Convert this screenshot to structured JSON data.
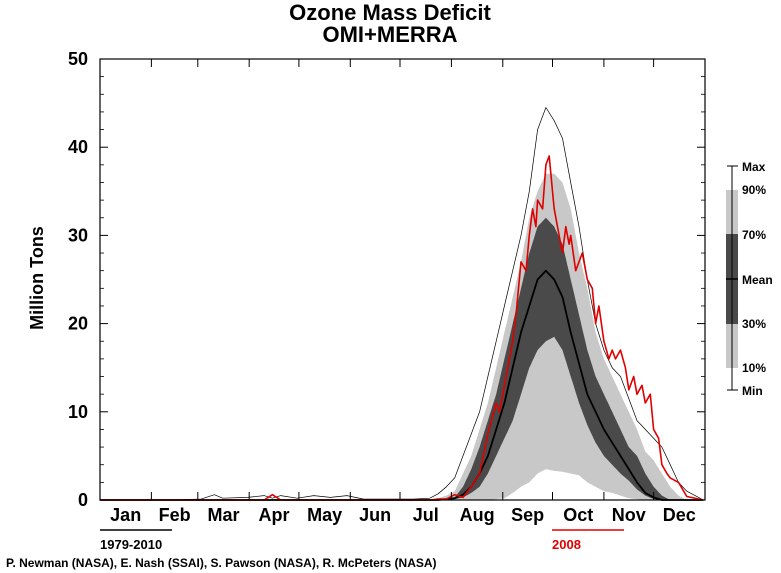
{
  "chart_data": {
    "type": "line",
    "title": "Ozone Mass Deficit",
    "subtitle": "OMI+MERRA",
    "ylabel": "Million Tons",
    "xlabel": "",
    "ylim": [
      0,
      50
    ],
    "yticks": [
      0,
      10,
      20,
      30,
      40,
      50
    ],
    "months": [
      "Jan",
      "Feb",
      "Mar",
      "Apr",
      "May",
      "Jun",
      "Jul",
      "Aug",
      "Sep",
      "Oct",
      "Nov",
      "Dec"
    ],
    "x_unit": "day of year",
    "climatology_period": "1979-2010",
    "highlight_year": "2008",
    "legend_labels": [
      "Max",
      "90%",
      "70%",
      "Mean",
      "30%",
      "10%",
      "Min"
    ],
    "colors": {
      "highlight": "#e00000",
      "mean": "#000000",
      "band_10_90": "#c8c8c8",
      "band_30_70": "#4a4a4a",
      "max_min": "#000000",
      "floor": "#7b2fd0"
    },
    "series": [
      {
        "name": "Max",
        "x": [
          1,
          40,
          62,
          70,
          75,
          90,
          100,
          105,
          110,
          120,
          130,
          140,
          150,
          160,
          170,
          180,
          190,
          200,
          205,
          210,
          215,
          220,
          225,
          230,
          235,
          240,
          245,
          250,
          255,
          260,
          265,
          270,
          275,
          280,
          285,
          290,
          295,
          300,
          305,
          310,
          315,
          320,
          325,
          330,
          335,
          340,
          345,
          350,
          355,
          360,
          365
        ],
        "values": [
          0,
          0,
          0.1,
          0.6,
          0.2,
          0.3,
          0.5,
          0.2,
          0.5,
          0.2,
          0.5,
          0.3,
          0.5,
          0.1,
          0.1,
          0.1,
          0.1,
          0.2,
          0.7,
          1.5,
          2.5,
          5,
          7.5,
          10,
          14,
          18,
          22,
          26,
          30,
          35,
          42,
          44.5,
          43,
          41,
          36,
          31,
          25,
          20,
          17,
          15,
          14,
          11.5,
          9,
          8,
          7,
          6,
          4,
          2,
          1,
          0.5,
          0
        ]
      },
      {
        "name": "90%",
        "x": [
          1,
          200,
          205,
          210,
          215,
          220,
          225,
          230,
          235,
          240,
          245,
          250,
          255,
          260,
          265,
          270,
          275,
          280,
          285,
          290,
          295,
          300,
          305,
          310,
          315,
          320,
          325,
          330,
          335,
          340,
          345,
          350,
          355,
          365
        ],
        "values": [
          0,
          0,
          0.2,
          0.5,
          1,
          3,
          5,
          8,
          11,
          15,
          19,
          23,
          27,
          32,
          35,
          37,
          37,
          36,
          33,
          28,
          24,
          19,
          16,
          14,
          12,
          10,
          8,
          5.5,
          4.5,
          3,
          1.5,
          0.5,
          0,
          0
        ]
      },
      {
        "name": "70%",
        "x": [
          1,
          205,
          210,
          215,
          220,
          225,
          230,
          235,
          240,
          245,
          250,
          255,
          260,
          265,
          270,
          275,
          280,
          285,
          290,
          295,
          300,
          305,
          310,
          315,
          320,
          325,
          330,
          335,
          340,
          345,
          365
        ],
        "values": [
          0,
          0,
          0.1,
          0.3,
          1.5,
          3.5,
          6,
          9,
          12,
          16,
          20,
          24,
          28,
          31,
          32,
          31,
          29,
          25,
          21,
          17,
          14,
          12,
          10,
          8,
          6,
          5,
          3,
          1.5,
          0.5,
          0,
          0
        ]
      },
      {
        "name": "Mean",
        "x": [
          1,
          205,
          210,
          215,
          220,
          225,
          230,
          235,
          240,
          245,
          250,
          255,
          260,
          265,
          270,
          275,
          280,
          285,
          290,
          295,
          300,
          305,
          310,
          315,
          320,
          325,
          330,
          335,
          340,
          345,
          350,
          365
        ],
        "values": [
          0,
          0,
          0.1,
          0.2,
          0.6,
          1.5,
          3,
          5,
          8,
          11,
          15,
          19,
          22,
          25,
          26,
          25,
          23,
          19,
          15.5,
          12,
          10,
          8,
          6.5,
          5,
          3.5,
          2,
          0.8,
          0.3,
          0,
          0,
          0,
          0
        ]
      },
      {
        "name": "30%",
        "x": [
          1,
          210,
          215,
          220,
          225,
          230,
          235,
          240,
          245,
          250,
          255,
          260,
          265,
          270,
          275,
          280,
          285,
          290,
          295,
          300,
          305,
          310,
          315,
          320,
          325,
          330,
          335,
          340,
          365
        ],
        "values": [
          0,
          0,
          0.1,
          0.3,
          0.8,
          1.5,
          3,
          5,
          7,
          9,
          12,
          15,
          17,
          18,
          18.5,
          17,
          14,
          11,
          8.5,
          6.5,
          5,
          4,
          3,
          2.2,
          1.2,
          0.5,
          0.1,
          0,
          0
        ]
      },
      {
        "name": "10%",
        "x": [
          1,
          225,
          235,
          245,
          250,
          255,
          260,
          265,
          270,
          275,
          280,
          285,
          290,
          295,
          300,
          305,
          310,
          315,
          320,
          330,
          365
        ],
        "values": [
          0,
          0,
          0,
          0.2,
          0.8,
          1.5,
          2,
          3,
          3.5,
          3.3,
          3.2,
          3,
          2.8,
          2,
          1.5,
          1,
          0.8,
          0.5,
          0.2,
          0,
          0
        ]
      },
      {
        "name": "Min",
        "x": [
          1,
          365
        ],
        "values": [
          0,
          0
        ]
      },
      {
        "name": "2008",
        "x": [
          1,
          60,
          100,
          105,
          110,
          200,
          205,
          210,
          215,
          220,
          225,
          230,
          235,
          240,
          242,
          245,
          250,
          252,
          255,
          258,
          260,
          262,
          264,
          265,
          268,
          270,
          272,
          274,
          275,
          278,
          280,
          282,
          284,
          285,
          288,
          290,
          292,
          295,
          298,
          300,
          302,
          305,
          308,
          310,
          312,
          315,
          318,
          320,
          323,
          325,
          328,
          330,
          333,
          335,
          338,
          340,
          343,
          345,
          350,
          355,
          365
        ],
        "values": [
          0,
          0,
          0,
          0.6,
          0,
          0,
          0.1,
          0.1,
          0.6,
          0.3,
          1.5,
          3,
          7.5,
          11,
          10,
          13,
          18,
          21,
          27,
          26,
          30,
          33,
          31,
          34,
          33,
          38,
          39,
          35,
          33,
          30,
          28,
          31,
          29,
          30,
          26,
          27,
          28,
          25,
          24,
          20,
          22,
          18,
          16,
          17,
          16,
          17,
          15,
          12.5,
          14,
          12,
          13,
          11,
          12,
          8,
          7,
          4,
          3,
          2.5,
          2,
          0.4,
          0
        ]
      }
    ]
  }
}
